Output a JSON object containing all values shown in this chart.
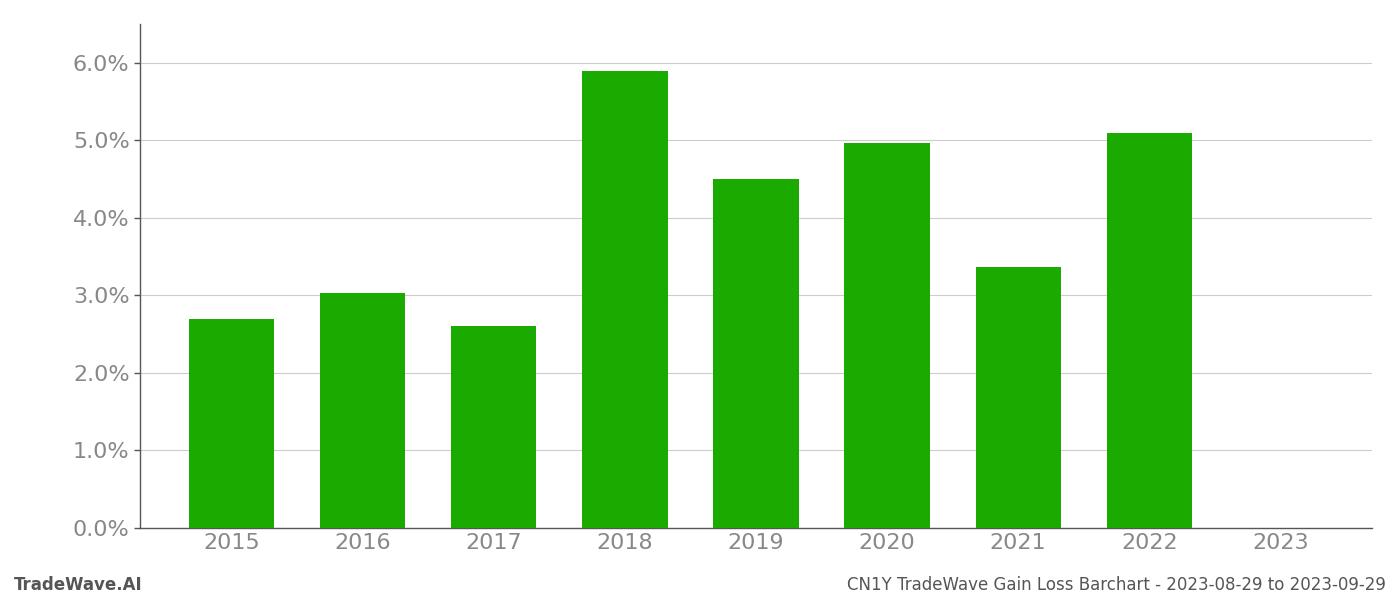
{
  "years": [
    2015,
    2016,
    2017,
    2018,
    2019,
    2020,
    2021,
    2022,
    2023
  ],
  "values": [
    0.027,
    0.0303,
    0.026,
    0.059,
    0.045,
    0.0497,
    0.0337,
    0.051,
    null
  ],
  "bar_color": "#1aaa00",
  "background_color": "#ffffff",
  "grid_color": "#cccccc",
  "axis_color": "#555555",
  "tick_label_color": "#888888",
  "ylim": [
    0.0,
    0.065
  ],
  "yticks": [
    0.0,
    0.01,
    0.02,
    0.03,
    0.04,
    0.05,
    0.06
  ],
  "footer_left": "TradeWave.AI",
  "footer_right": "CN1Y TradeWave Gain Loss Barchart - 2023-08-29 to 2023-09-29",
  "footer_color": "#555555",
  "footer_fontsize": 12,
  "tick_fontsize": 16,
  "bar_width": 0.65
}
